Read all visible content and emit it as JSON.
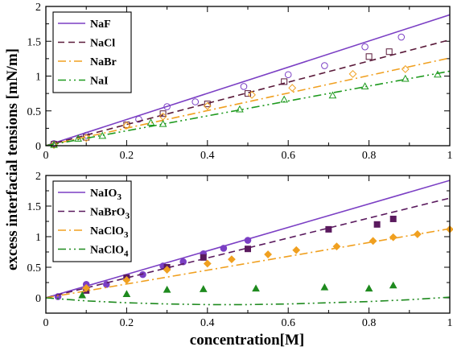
{
  "figure": {
    "ylabel": "excess interfacial tensions [mN/m]",
    "xlabel": "concentration[M]"
  },
  "chart_data": [
    {
      "type": "line",
      "xlim": [
        0,
        1
      ],
      "ylim": [
        0,
        2
      ],
      "x_ticks": [
        "0",
        "0.2",
        "0.4",
        "0.6",
        "0.8",
        "1"
      ],
      "y_ticks": [
        "0",
        "0.5",
        "1",
        "1.5",
        "2"
      ],
      "grid": false,
      "legend_position": "top-left",
      "series": [
        {
          "name": "NaF",
          "name_base": "NaF",
          "name_sub": "",
          "name_tail": "",
          "color": "#7b3fc4",
          "dash": "solid",
          "marker": "circle-open",
          "line": [
            [
              0,
              0
            ],
            [
              1,
              1.88
            ]
          ],
          "points": [
            [
              0.02,
              0.03
            ],
            [
              0.1,
              0.15
            ],
            [
              0.23,
              0.38
            ],
            [
              0.3,
              0.56
            ],
            [
              0.37,
              0.63
            ],
            [
              0.49,
              0.85
            ],
            [
              0.6,
              1.02
            ],
            [
              0.69,
              1.15
            ],
            [
              0.79,
              1.42
            ],
            [
              0.88,
              1.56
            ]
          ]
        },
        {
          "name": "NaCl",
          "name_base": "NaCl",
          "name_sub": "",
          "name_tail": "",
          "color": "#5a1a3a",
          "dash": "8,5",
          "marker": "square-open",
          "line": [
            [
              0,
              0
            ],
            [
              1,
              1.52
            ]
          ],
          "points": [
            [
              0.02,
              0.02
            ],
            [
              0.1,
              0.12
            ],
            [
              0.2,
              0.3
            ],
            [
              0.29,
              0.46
            ],
            [
              0.4,
              0.6
            ],
            [
              0.5,
              0.75
            ],
            [
              0.59,
              0.92
            ],
            [
              0.8,
              1.28
            ],
            [
              0.85,
              1.35
            ]
          ]
        },
        {
          "name": "NaBr",
          "name_base": "NaBr",
          "name_sub": "",
          "name_tail": "",
          "color": "#f0a020",
          "dash": "10,4,2,4",
          "marker": "diamond-open",
          "line": [
            [
              0,
              0
            ],
            [
              1,
              1.26
            ]
          ],
          "points": [
            [
              0.02,
              0.01
            ],
            [
              0.1,
              0.11
            ],
            [
              0.2,
              0.29
            ],
            [
              0.29,
              0.42
            ],
            [
              0.4,
              0.57
            ],
            [
              0.51,
              0.73
            ],
            [
              0.61,
              0.83
            ],
            [
              0.76,
              1.03
            ],
            [
              0.89,
              1.1
            ]
          ]
        },
        {
          "name": "NaI",
          "name_base": "NaI",
          "name_sub": "",
          "name_tail": "",
          "color": "#1e9a1e",
          "dash": "10,4,2,4,2,4",
          "marker": "triangle-open",
          "line": [
            [
              0,
              0
            ],
            [
              1,
              1.07
            ]
          ],
          "points": [
            [
              0.02,
              0.01
            ],
            [
              0.08,
              0.1
            ],
            [
              0.14,
              0.14
            ],
            [
              0.26,
              0.33
            ],
            [
              0.29,
              0.31
            ],
            [
              0.48,
              0.52
            ],
            [
              0.59,
              0.66
            ],
            [
              0.71,
              0.72
            ],
            [
              0.79,
              0.85
            ],
            [
              0.89,
              0.96
            ],
            [
              0.97,
              1.02
            ]
          ]
        }
      ]
    },
    {
      "type": "line",
      "xlim": [
        0,
        1
      ],
      "ylim": [
        -0.25,
        2
      ],
      "x_ticks": [
        "0",
        "0.2",
        "0.4",
        "0.6",
        "0.8",
        "1"
      ],
      "y_ticks": [
        "0",
        "0.5",
        "1",
        "1.5",
        "2"
      ],
      "grid": false,
      "legend_position": "top-left",
      "series": [
        {
          "name": "NaIO3",
          "name_base": "NaIO",
          "name_sub": "3",
          "name_tail": "",
          "color": "#7b3fc4",
          "dash": "solid",
          "marker": "circle-filled",
          "line": [
            [
              0,
              0
            ],
            [
              1,
              1.92
            ]
          ],
          "points": [
            [
              0.03,
              0.02
            ],
            [
              0.1,
              0.22
            ],
            [
              0.15,
              0.22
            ],
            [
              0.2,
              0.33
            ],
            [
              0.24,
              0.38
            ],
            [
              0.29,
              0.52
            ],
            [
              0.34,
              0.59
            ],
            [
              0.39,
              0.72
            ],
            [
              0.44,
              0.81
            ],
            [
              0.5,
              0.94
            ]
          ]
        },
        {
          "name": "NaBrO3",
          "name_base": "NaBrO",
          "name_sub": "3",
          "name_tail": "",
          "color": "#5a1a5e",
          "dash": "8,5",
          "marker": "square-filled",
          "line": [
            [
              0,
              0
            ],
            [
              1,
              1.63
            ]
          ],
          "points": [
            [
              0.1,
              0.12
            ],
            [
              0.2,
              0.33
            ],
            [
              0.3,
              0.5
            ],
            [
              0.39,
              0.66
            ],
            [
              0.5,
              0.8
            ],
            [
              0.7,
              1.12
            ],
            [
              0.82,
              1.2
            ],
            [
              0.86,
              1.29
            ]
          ]
        },
        {
          "name": "NaClO3",
          "name_base": "NaClO",
          "name_sub": "3",
          "name_tail": "",
          "color": "#f0a020",
          "dash": "10,4,2,4",
          "marker": "diamond-filled",
          "line": [
            [
              0,
              0
            ],
            [
              1,
              1.13
            ]
          ],
          "points": [
            [
              0.1,
              0.16
            ],
            [
              0.2,
              0.29
            ],
            [
              0.3,
              0.46
            ],
            [
              0.4,
              0.56
            ],
            [
              0.46,
              0.63
            ],
            [
              0.55,
              0.71
            ],
            [
              0.62,
              0.78
            ],
            [
              0.72,
              0.84
            ],
            [
              0.81,
              0.93
            ],
            [
              0.86,
              0.99
            ],
            [
              0.92,
              1.04
            ],
            [
              1.0,
              1.12
            ]
          ]
        },
        {
          "name": "NaClO4",
          "name_base": "NaClO",
          "name_sub": "4",
          "name_tail": "",
          "color": "#1e8a1e",
          "dash": "10,4,2,4,2,4",
          "marker": "triangle-filled",
          "curve": [
            [
              0,
              0
            ],
            [
              0.1,
              -0.05
            ],
            [
              0.2,
              -0.08
            ],
            [
              0.3,
              -0.1
            ],
            [
              0.4,
              -0.11
            ],
            [
              0.5,
              -0.11
            ],
            [
              0.6,
              -0.1
            ],
            [
              0.7,
              -0.08
            ],
            [
              0.8,
              -0.06
            ],
            [
              0.9,
              -0.03
            ],
            [
              1.0,
              0.01
            ]
          ],
          "points": [
            [
              0.09,
              0.04
            ],
            [
              0.2,
              0.06
            ],
            [
              0.3,
              0.13
            ],
            [
              0.39,
              0.14
            ],
            [
              0.52,
              0.15
            ],
            [
              0.69,
              0.17
            ],
            [
              0.8,
              0.15
            ],
            [
              0.86,
              0.2
            ]
          ]
        }
      ]
    }
  ]
}
